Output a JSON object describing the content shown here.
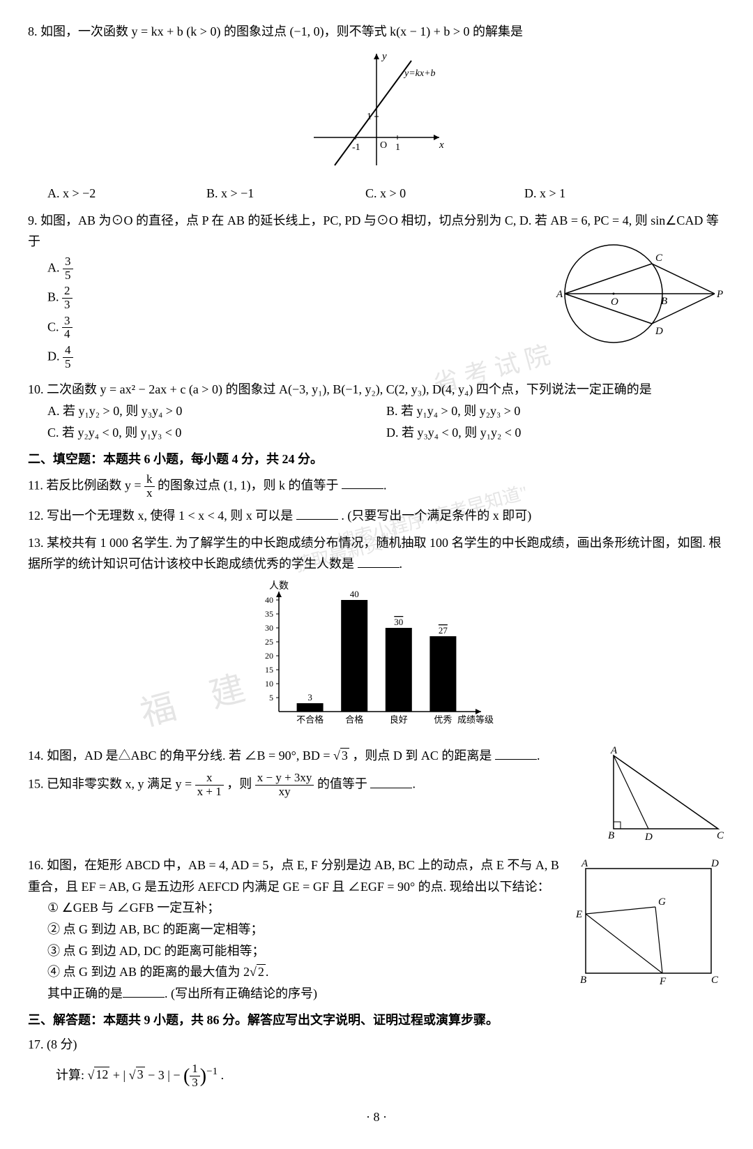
{
  "q8": {
    "num": "8.",
    "text": "如图，一次函数 y = kx + b (k > 0) 的图象过点 (−1, 0)，则不等式 k(x − 1) + b > 0 的解集是",
    "optA": "A. x > −2",
    "optB": "B. x > −1",
    "optC": "C. x > 0",
    "optD": "D. x > 1",
    "graph": {
      "line_label": "y=kx+b",
      "x_label": "x",
      "y_label": "y",
      "tick_x": "1",
      "tick_nx": "-1",
      "tick_y": "1",
      "origin": "O"
    }
  },
  "q9": {
    "num": "9.",
    "text": "如图，AB 为⊙O 的直径，点 P 在 AB 的延长线上，PC, PD 与⊙O 相切，切点分别为 C, D. 若 AB = 6, PC = 4, 则 sin∠CAD 等于",
    "optA_label": "A.",
    "optA_n": "3",
    "optA_d": "5",
    "optB_label": "B.",
    "optB_n": "2",
    "optB_d": "3",
    "optC_label": "C.",
    "optC_n": "3",
    "optC_d": "4",
    "optD_label": "D.",
    "optD_n": "4",
    "optD_d": "5",
    "labels": {
      "A": "A",
      "B": "B",
      "C": "C",
      "D": "D",
      "O": "O",
      "P": "P"
    }
  },
  "q10": {
    "num": "10.",
    "text": "二次函数 y = ax² − 2ax + c (a > 0) 的图象过 A(−3, y₁), B(−1, y₂), C(2, y₃), D(4, y₄) 四个点，下列说法一定正确的是",
    "optA": "A. 若 y₁y₂ > 0, 则 y₃y₄ > 0",
    "optB": "B. 若 y₁y₄ > 0, 则 y₂y₃ > 0",
    "optC": "C. 若 y₂y₄ < 0, 则 y₁y₃ < 0",
    "optD": "D. 若 y₃y₄ < 0, 则 y₁y₂ < 0"
  },
  "sec2": "二、填空题：本题共 6 小题，每小题 4 分，共 24 分。",
  "q11": {
    "num": "11.",
    "t1": "若反比例函数 y =",
    "frac_n": "k",
    "frac_d": "x",
    "t2": " 的图象过点 (1, 1)，则 k 的值等于"
  },
  "q12": {
    "num": "12.",
    "t1": "写出一个无理数 x, 使得 1 < x < 4, 则 x 可以是",
    "t2": ". (只要写出一个满足条件的 x 即可)"
  },
  "q13": {
    "num": "13.",
    "text": "某校共有 1 000 名学生. 为了解学生的中长跑成绩分布情况，随机抽取 100 名学生的中长跑成绩，画出条形统计图，如图. 根据所学的统计知识可估计该校中长跑成绩优秀的学生人数是",
    "chart": {
      "ylabel": "人数",
      "xlabel": "成绩等级",
      "yticks": [
        "5",
        "10",
        "15",
        "20",
        "25",
        "30",
        "35",
        "40"
      ],
      "cats": [
        "不合格",
        "合格",
        "良好",
        "优秀"
      ],
      "values": [
        3,
        40,
        30,
        27
      ],
      "value_labels": [
        "3",
        "40",
        "30",
        "27"
      ],
      "bar_color": "#000000",
      "axis_color": "#000000"
    }
  },
  "q14": {
    "num": "14.",
    "t1": "如图，AD 是△ABC 的角平分线. 若 ∠B = 90°, BD =",
    "sqrt": "3",
    "t2": "，则点 D 到 AC 的距离是",
    "labels": {
      "A": "A",
      "B": "B",
      "C": "C",
      "D": "D"
    }
  },
  "q15": {
    "num": "15.",
    "t1": "已知非零实数 x, y 满足 y =",
    "f1n": "x",
    "f1d": "x + 1",
    "t2": "，则",
    "f2n": "x − y + 3xy",
    "f2d": "xy",
    "t3": " 的值等于"
  },
  "q16": {
    "num": "16.",
    "t1": "如图，在矩形 ABCD 中，AB = 4, AD = 5，点 E, F 分别是边 AB, BC 上的动点，点 E 不与 A, B 重合，且 EF = AB, G 是五边形 AEFCD 内满足 GE = GF 且 ∠EGF = 90° 的点. 现给出以下结论：",
    "s1": "① ∠GEB 与 ∠GFB 一定互补；",
    "s2": "② 点 G 到边 AB, BC 的距离一定相等；",
    "s3": "③ 点 G 到边 AD, DC 的距离可能相等；",
    "s4_a": "④ 点 G 到边 AB 的距离的最大值为 2",
    "s4_sqrt": "2",
    "s4_b": ".",
    "t2": "其中正确的是",
    "t3": ". (写出所有正确结论的序号)",
    "labels": {
      "A": "A",
      "B": "B",
      "C": "C",
      "D": "D",
      "E": "E",
      "F": "F",
      "G": "G"
    }
  },
  "sec3": "三、解答题：本题共 9 小题，共 86 分。解答应写出文字说明、证明过程或演算步骤。",
  "q17": {
    "num": "17.",
    "pts": "(8 分)",
    "t1": "计算: ",
    "sqrt12": "12",
    "t2": " + | ",
    "sqrt3": "3",
    "t3": " − 3 | − ",
    "f_n": "1",
    "f_d": "3",
    "exp": "−1",
    "t4": "."
  },
  "page": "· 8 ·",
  "wm1": "福 建",
  "wm2": "省 考 试 院",
  "wm3": "搜索小程序\"高考早知道\"",
  "wm4": "获取最新资料"
}
